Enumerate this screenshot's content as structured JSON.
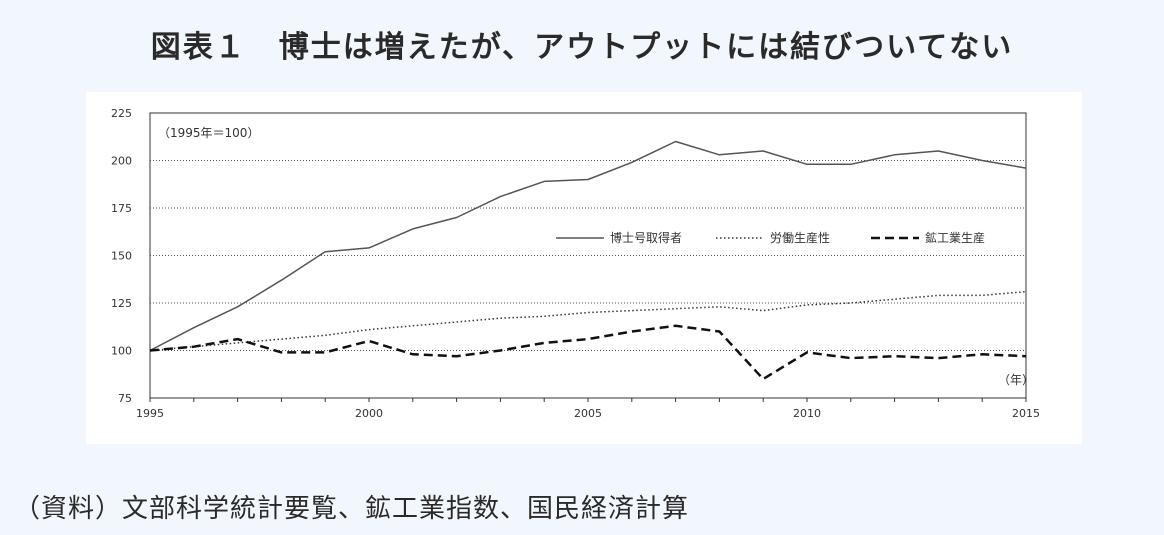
{
  "title": "図表１　博士は増えたが、アウトプットには結びついてない",
  "source": "（資料）文部科学統計要覧、鉱工業指数、国民経済計算",
  "chart_data": {
    "type": "line",
    "index_note": "（1995年＝100）",
    "xunit": "（年）",
    "ylim": [
      75,
      225
    ],
    "yticks": [
      75,
      100,
      125,
      150,
      175,
      200,
      225
    ],
    "xlim": [
      1995,
      2015
    ],
    "xticks": [
      1995,
      2000,
      2005,
      2010,
      2015
    ],
    "grid": true,
    "legend_position": "upper-right-inside",
    "x": [
      1995,
      1996,
      1997,
      1998,
      1999,
      2000,
      2001,
      2002,
      2003,
      2004,
      2005,
      2006,
      2007,
      2008,
      2009,
      2010,
      2011,
      2012,
      2013,
      2014,
      2015
    ],
    "series": [
      {
        "name": "博士号取得者",
        "style": "solid",
        "color": "#555555",
        "values": [
          100,
          112,
          123,
          137,
          152,
          154,
          164,
          170,
          181,
          189,
          190,
          199,
          210,
          203,
          205,
          198,
          198,
          203,
          205,
          200,
          196
        ]
      },
      {
        "name": "労働生産性",
        "style": "dotted",
        "color": "#333333",
        "values": [
          100,
          102,
          104,
          106,
          108,
          111,
          113,
          115,
          117,
          118,
          120,
          121,
          122,
          123,
          121,
          124,
          125,
          127,
          129,
          129,
          131
        ]
      },
      {
        "name": "鉱工業生産",
        "style": "dashed",
        "color": "#111111",
        "values": [
          100,
          102,
          106,
          99,
          99,
          105,
          98,
          97,
          100,
          104,
          106,
          110,
          113,
          110,
          85,
          99,
          96,
          97,
          96,
          98,
          97
        ]
      }
    ]
  }
}
